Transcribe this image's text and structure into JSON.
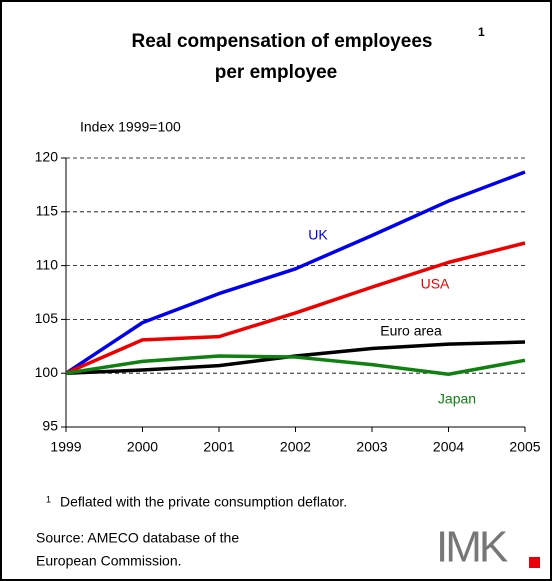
{
  "chart_data": {
    "type": "line",
    "title": [
      "Real compensation of employees",
      "per employee"
    ],
    "title_footnote_mark": "1",
    "y_axis_label": "Index 1999=100",
    "x": [
      1999,
      2000,
      2001,
      2002,
      2003,
      2004,
      2005
    ],
    "xlim": [
      1999,
      2005
    ],
    "xticks": [
      1999,
      2000,
      2001,
      2002,
      2003,
      2004,
      2005
    ],
    "ylim": [
      95,
      120
    ],
    "yticks": [
      95,
      100,
      105,
      110,
      115,
      120
    ],
    "grid": true,
    "series": [
      {
        "name": "UK",
        "color": "#0000ee",
        "values": [
          100,
          104.7,
          107.4,
          109.7,
          112.8,
          116.0,
          118.7
        ]
      },
      {
        "name": "USA",
        "color": "#ee0000",
        "values": [
          100,
          103.1,
          103.4,
          105.6,
          108.0,
          110.3,
          112.1
        ]
      },
      {
        "name": "Euro area",
        "color": "#000000",
        "values": [
          100,
          100.3,
          100.7,
          101.6,
          102.3,
          102.7,
          102.9
        ]
      },
      {
        "name": "Japan",
        "color": "#108010",
        "values": [
          100,
          101.1,
          101.6,
          101.5,
          100.8,
          99.9,
          101.2
        ]
      }
    ],
    "footnote": {
      "mark": "1",
      "text": "Deflated with the private consumption deflator."
    },
    "source": [
      "Source: AMECO database of the",
      "European Commission."
    ],
    "logo": "IMK"
  }
}
